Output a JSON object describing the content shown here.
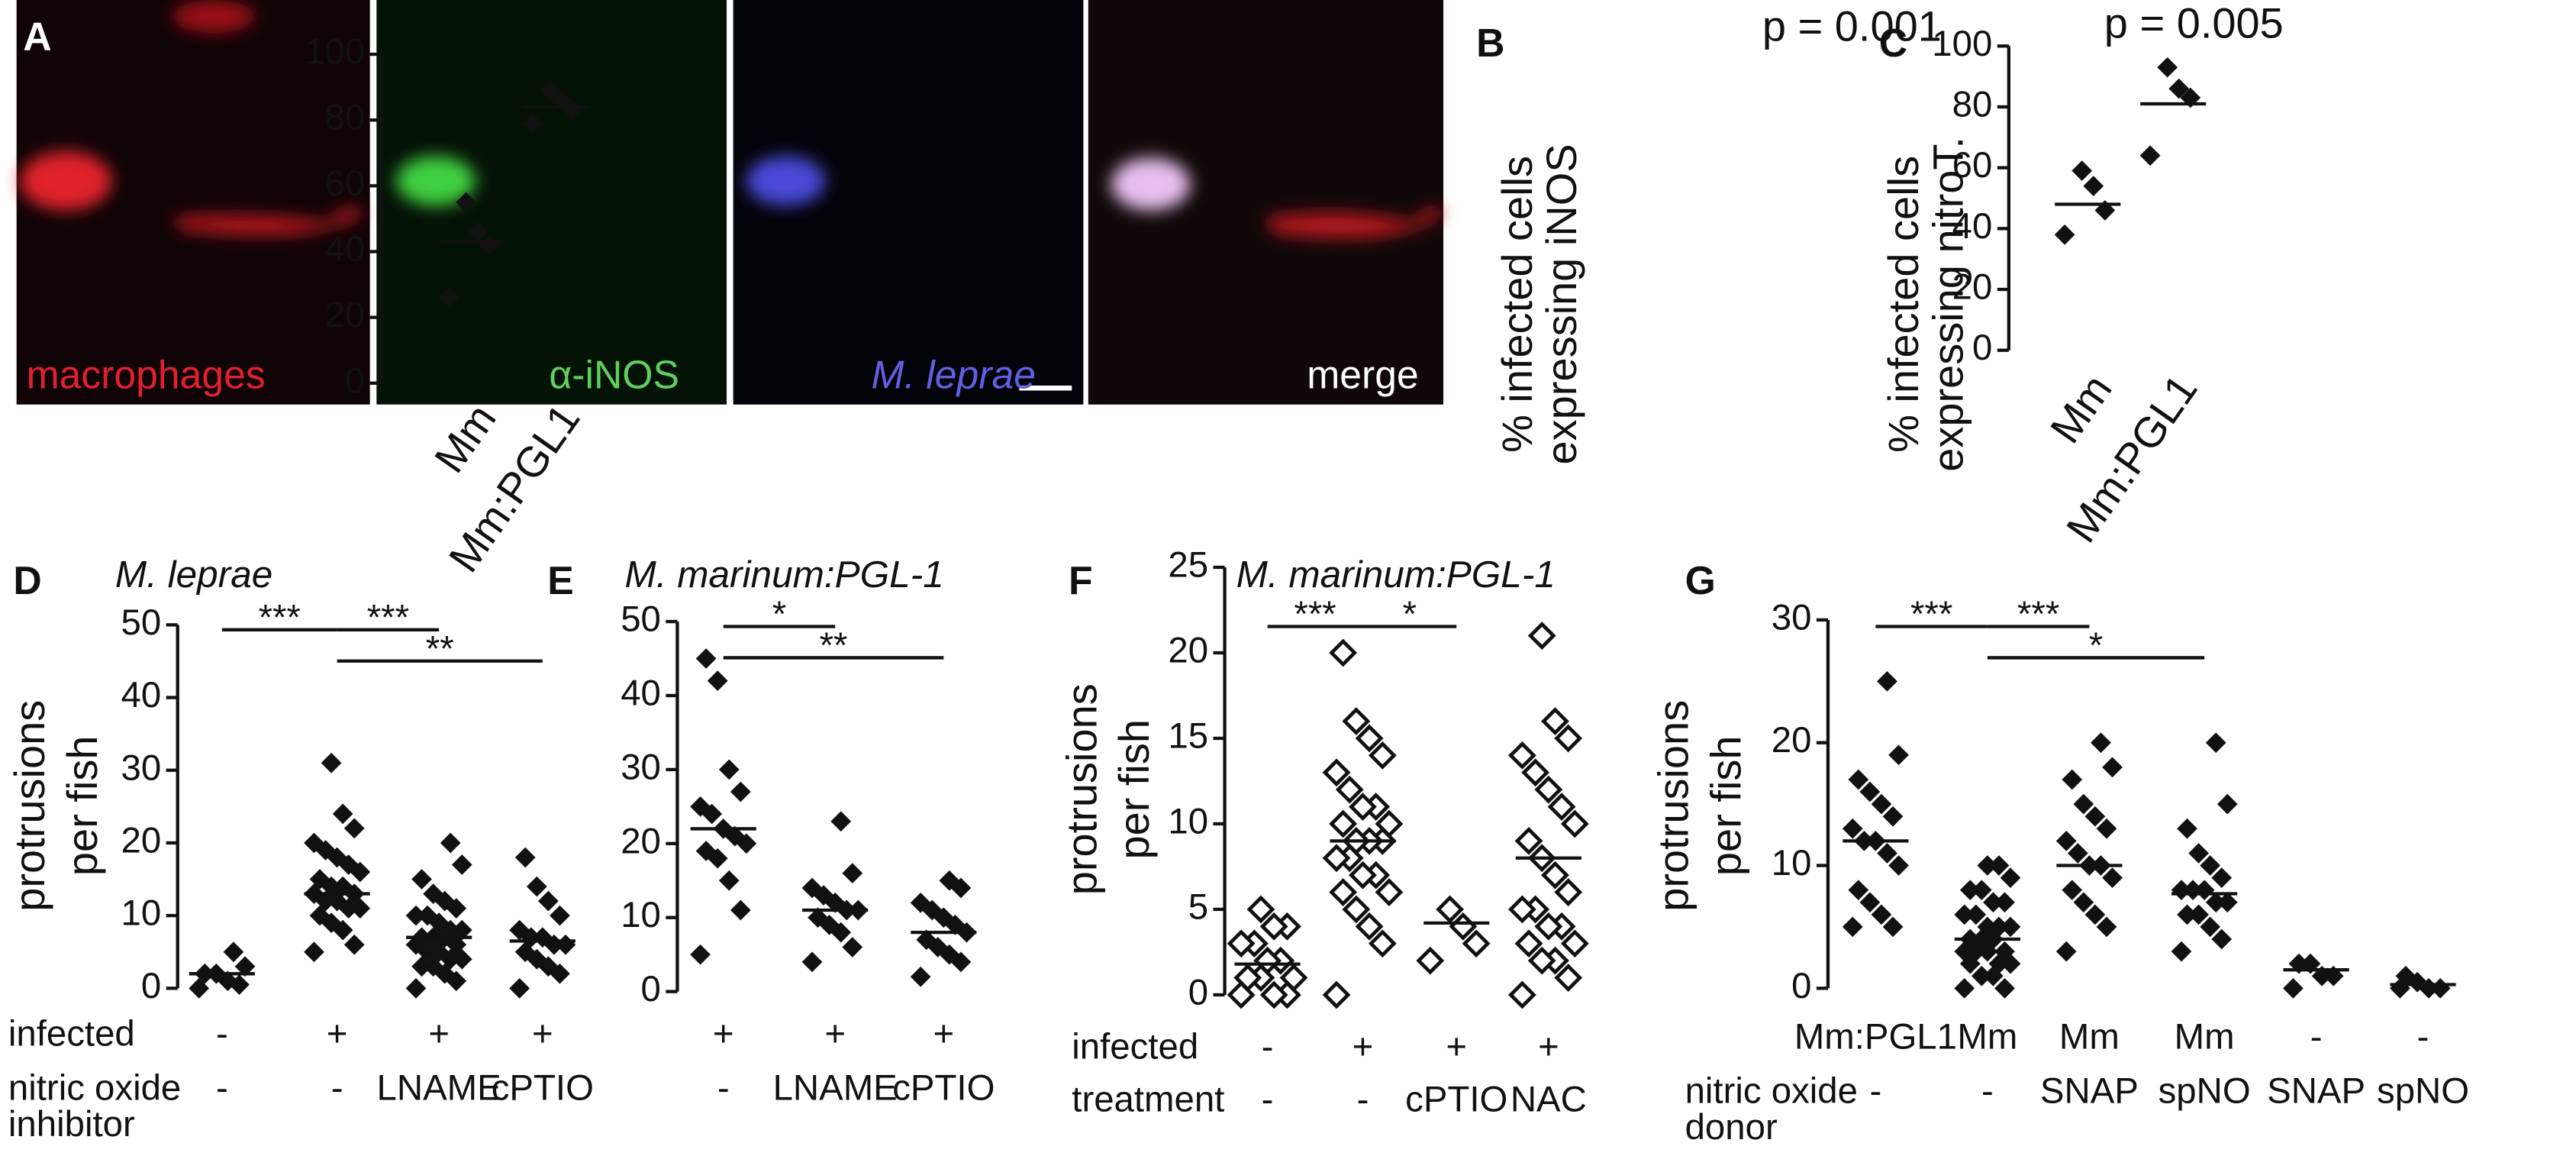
{
  "panel_a": {
    "letter": "A",
    "labels": [
      "macrophages",
      "α-iNOS",
      "M. leprae",
      "merge"
    ]
  },
  "chart_data": [
    {
      "type": "strip",
      "letter": "B",
      "title": "p = 0.001",
      "ylabel": [
        "% infected cells",
        "expressing iNOS"
      ],
      "categories": [
        "Mm",
        "Mm:PGL1"
      ],
      "ylim": [
        0,
        100
      ],
      "yticks": [
        0,
        20,
        40,
        60,
        80,
        100
      ],
      "marker": "filled",
      "groups": [
        {
          "values": [
            26,
            42,
            46,
            55
          ],
          "median": 43
        },
        {
          "values": [
            79,
            83,
            86,
            89
          ],
          "median": 84
        }
      ]
    },
    {
      "type": "strip",
      "letter": "C",
      "title": "p = 0.005",
      "ylabel": [
        "% infected cells",
        "expressing nitroT."
      ],
      "categories": [
        "Mm",
        "Mm:PGL1"
      ],
      "ylim": [
        0,
        100
      ],
      "yticks": [
        0,
        20,
        40,
        60,
        80,
        100
      ],
      "marker": "filled",
      "groups": [
        {
          "values": [
            38,
            46,
            54,
            59
          ],
          "median": 48
        },
        {
          "values": [
            64,
            83,
            86,
            93
          ],
          "median": 81
        }
      ]
    },
    {
      "type": "strip",
      "letter": "D",
      "title": "M. leprae",
      "ylabel": [
        "protrusions",
        "per fish"
      ],
      "ylim": [
        0,
        50
      ],
      "yticks": [
        0,
        10,
        20,
        30,
        40,
        50
      ],
      "marker": "filled",
      "rows": [
        {
          "label": [
            "infected"
          ],
          "values": [
            "-",
            "+",
            "+",
            "+"
          ]
        },
        {
          "label": [
            "nitric oxide",
            "inhibitor"
          ],
          "values": [
            "-",
            "-",
            "LNAME",
            "cPTIO"
          ]
        }
      ],
      "comparisons": [
        "***",
        "***",
        "**"
      ],
      "groups": [
        {
          "values": [
            0,
            0.5,
            1,
            2,
            2,
            3,
            5
          ],
          "median": 2
        },
        {
          "values": [
            5,
            6,
            8,
            9,
            10,
            11,
            11,
            12,
            12,
            13,
            13,
            14,
            14,
            15,
            16,
            17,
            18,
            19,
            20,
            22,
            24,
            31
          ],
          "median": 13
        },
        {
          "values": [
            0,
            1,
            2,
            3,
            3,
            4,
            4,
            5,
            5,
            6,
            6,
            7,
            7,
            7,
            8,
            8,
            9,
            10,
            10,
            11,
            12,
            13,
            15,
            17,
            20
          ],
          "median": 7
        },
        {
          "values": [
            0,
            2,
            3,
            4,
            5,
            6,
            6,
            7,
            7,
            8,
            10,
            12,
            14,
            18
          ],
          "median": 6.5
        }
      ]
    },
    {
      "type": "strip",
      "letter": "E",
      "title": "M. marinum:PGL-1",
      "ylim": [
        0,
        50
      ],
      "yticks": [
        0,
        10,
        20,
        30,
        40,
        50
      ],
      "marker": "filled",
      "rows": [
        {
          "values": [
            "+",
            "+",
            "+"
          ]
        },
        {
          "values": [
            "-",
            "LNAME",
            "cPTIO"
          ]
        }
      ],
      "comparisons": [
        "*",
        "**"
      ],
      "groups": [
        {
          "values": [
            5,
            11,
            15,
            18,
            19,
            20,
            21,
            22,
            24,
            25,
            27,
            30,
            42,
            45
          ],
          "median": 22
        },
        {
          "values": [
            4,
            6,
            8,
            9,
            10,
            11,
            11,
            12,
            13,
            14,
            16,
            23
          ],
          "median": 11
        },
        {
          "values": [
            2,
            4,
            5,
            6,
            7,
            8,
            9,
            10,
            11,
            12,
            14,
            15
          ],
          "median": 8
        }
      ]
    },
    {
      "type": "strip",
      "letter": "F",
      "title": "M. marinum:PGL-1",
      "ylabel": [
        "protrusions",
        "per fish"
      ],
      "ylim": [
        0,
        25
      ],
      "yticks": [
        0,
        5,
        10,
        15,
        20,
        25
      ],
      "marker": "open",
      "rows": [
        {
          "label": [
            "infected"
          ],
          "values": [
            "-",
            "+",
            "+",
            "+"
          ]
        },
        {
          "label": [
            "treatment"
          ],
          "values": [
            "-",
            "-",
            "cPTIO",
            "NAC"
          ]
        }
      ],
      "comparisons": [
        "***",
        "*"
      ],
      "groups": [
        {
          "values": [
            0,
            0,
            0,
            1,
            1,
            1,
            2,
            2,
            3,
            3,
            4,
            4,
            5
          ],
          "median": 1.8
        },
        {
          "values": [
            0,
            3,
            4,
            5,
            6,
            6,
            7,
            7,
            8,
            8,
            9,
            9,
            9,
            10,
            10,
            11,
            11,
            12,
            13,
            14,
            15,
            16,
            20
          ],
          "median": 9
        },
        {
          "values": [
            2,
            3,
            4,
            5
          ],
          "median": 4.2
        },
        {
          "values": [
            0,
            1,
            2,
            2,
            3,
            3,
            4,
            4,
            5,
            5,
            6,
            7,
            8,
            9,
            10,
            11,
            12,
            13,
            14,
            15,
            16,
            21
          ],
          "median": 8
        }
      ]
    },
    {
      "type": "strip",
      "letter": "G",
      "ylabel": [
        "protrusions",
        "per fish"
      ],
      "ylim": [
        0,
        30
      ],
      "yticks": [
        0,
        10,
        20,
        30
      ],
      "marker": "filled",
      "rows": [
        {
          "values": [
            "Mm:PGL1",
            "Mm",
            "Mm",
            "Mm",
            "-",
            "-"
          ]
        },
        {
          "label": [
            "nitric oxide",
            "donor"
          ],
          "values": [
            "-",
            "-",
            "SNAP",
            "spNO",
            "SNAP",
            "spNO"
          ]
        }
      ],
      "comparisons": [
        "***",
        "***",
        "*"
      ],
      "groups": [
        {
          "values": [
            5,
            5,
            6,
            7,
            8,
            10,
            11,
            12,
            12,
            13,
            14,
            15,
            16,
            17,
            19,
            25
          ],
          "median": 12
        },
        {
          "values": [
            0,
            0,
            1,
            1,
            2,
            2,
            2,
            3,
            3,
            3,
            3,
            4,
            4,
            4,
            5,
            5,
            5,
            6,
            6,
            7,
            7,
            8,
            8,
            9,
            10,
            10
          ],
          "median": 4
        },
        {
          "values": [
            3,
            5,
            6,
            7,
            8,
            9,
            10,
            10,
            11,
            12,
            13,
            14,
            15,
            17,
            18,
            20
          ],
          "median": 10
        },
        {
          "values": [
            3,
            4,
            5,
            6,
            6,
            7,
            7,
            8,
            8,
            8,
            9,
            10,
            11,
            13,
            15,
            20
          ],
          "median": 7.7
        },
        {
          "values": [
            0,
            1,
            1,
            2,
            2
          ],
          "median": 1.5
        },
        {
          "values": [
            0,
            0,
            0,
            0.5,
            1
          ],
          "median": 0.3
        }
      ]
    }
  ]
}
